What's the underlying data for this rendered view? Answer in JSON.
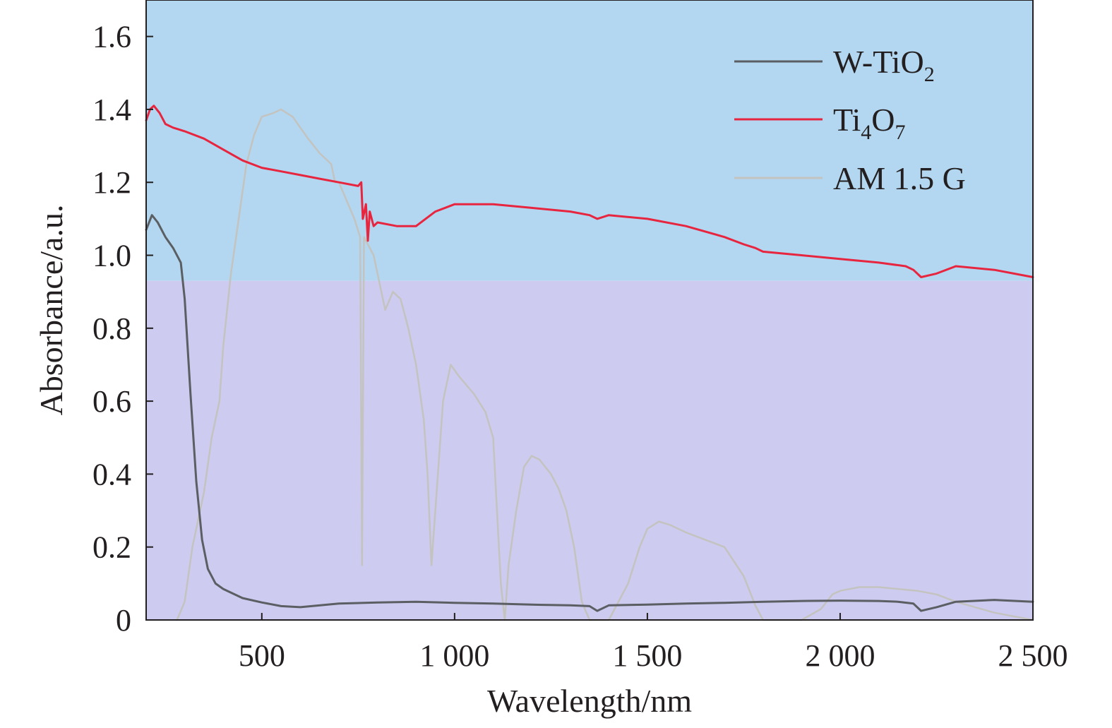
{
  "chart_data": {
    "type": "line",
    "title": "",
    "xlabel": "Wavelength/nm",
    "ylabel": "Absorbance/a.u.",
    "xlim": [
      200,
      2500
    ],
    "ylim": [
      0,
      1.7
    ],
    "x_ticks": [
      500,
      1000,
      1500,
      2000,
      2500
    ],
    "x_tick_labels": [
      "500",
      "1 000",
      "1 500",
      "2 000",
      "2 500"
    ],
    "y_ticks": [
      0,
      0.2,
      0.4,
      0.6,
      0.8,
      1.0,
      1.2,
      1.4,
      1.6
    ],
    "y_tick_labels": [
      "0",
      "0.2",
      "0.4",
      "0.6",
      "0.8",
      "1.0",
      "1.2",
      "1.4",
      "1.6"
    ],
    "grid": false,
    "legend_position": "top-right",
    "background_bands": [
      {
        "from": 0.93,
        "to": 1.7,
        "color": "#b3d7f0"
      },
      {
        "from": 0,
        "to": 0.93,
        "color": "#cecbf0"
      }
    ],
    "series": [
      {
        "name_main": "W-TiO",
        "name_sub": "2",
        "color": "#5b5e62",
        "points": [
          [
            200,
            1.07
          ],
          [
            215,
            1.11
          ],
          [
            230,
            1.09
          ],
          [
            250,
            1.05
          ],
          [
            270,
            1.02
          ],
          [
            290,
            0.98
          ],
          [
            300,
            0.88
          ],
          [
            315,
            0.62
          ],
          [
            330,
            0.38
          ],
          [
            345,
            0.22
          ],
          [
            360,
            0.14
          ],
          [
            380,
            0.1
          ],
          [
            400,
            0.085
          ],
          [
            450,
            0.06
          ],
          [
            500,
            0.048
          ],
          [
            550,
            0.038
          ],
          [
            600,
            0.035
          ],
          [
            700,
            0.045
          ],
          [
            800,
            0.048
          ],
          [
            900,
            0.05
          ],
          [
            1000,
            0.047
          ],
          [
            1100,
            0.045
          ],
          [
            1200,
            0.042
          ],
          [
            1300,
            0.04
          ],
          [
            1350,
            0.038
          ],
          [
            1370,
            0.025
          ],
          [
            1400,
            0.04
          ],
          [
            1500,
            0.042
          ],
          [
            1600,
            0.045
          ],
          [
            1700,
            0.047
          ],
          [
            1800,
            0.05
          ],
          [
            1900,
            0.052
          ],
          [
            2000,
            0.053
          ],
          [
            2100,
            0.052
          ],
          [
            2150,
            0.05
          ],
          [
            2190,
            0.045
          ],
          [
            2210,
            0.025
          ],
          [
            2250,
            0.035
          ],
          [
            2300,
            0.05
          ],
          [
            2400,
            0.055
          ],
          [
            2500,
            0.05
          ]
        ]
      },
      {
        "name_main": "Ti",
        "name_sub": "4",
        "name_main2": "O",
        "name_sub2": "7",
        "color": "#e8253f",
        "points": [
          [
            200,
            1.37
          ],
          [
            210,
            1.4
          ],
          [
            220,
            1.41
          ],
          [
            235,
            1.39
          ],
          [
            250,
            1.36
          ],
          [
            270,
            1.35
          ],
          [
            300,
            1.34
          ],
          [
            350,
            1.32
          ],
          [
            400,
            1.29
          ],
          [
            450,
            1.26
          ],
          [
            500,
            1.24
          ],
          [
            550,
            1.23
          ],
          [
            600,
            1.22
          ],
          [
            650,
            1.21
          ],
          [
            700,
            1.2
          ],
          [
            750,
            1.19
          ],
          [
            758,
            1.2
          ],
          [
            762,
            1.1
          ],
          [
            770,
            1.14
          ],
          [
            775,
            1.04
          ],
          [
            780,
            1.12
          ],
          [
            790,
            1.08
          ],
          [
            800,
            1.09
          ],
          [
            850,
            1.08
          ],
          [
            900,
            1.08
          ],
          [
            950,
            1.12
          ],
          [
            1000,
            1.14
          ],
          [
            1100,
            1.14
          ],
          [
            1200,
            1.13
          ],
          [
            1300,
            1.12
          ],
          [
            1350,
            1.11
          ],
          [
            1370,
            1.1
          ],
          [
            1400,
            1.11
          ],
          [
            1500,
            1.1
          ],
          [
            1600,
            1.08
          ],
          [
            1700,
            1.05
          ],
          [
            1750,
            1.03
          ],
          [
            1780,
            1.02
          ],
          [
            1800,
            1.01
          ],
          [
            1900,
            1.0
          ],
          [
            2000,
            0.99
          ],
          [
            2100,
            0.98
          ],
          [
            2170,
            0.97
          ],
          [
            2190,
            0.96
          ],
          [
            2210,
            0.94
          ],
          [
            2250,
            0.95
          ],
          [
            2300,
            0.97
          ],
          [
            2400,
            0.96
          ],
          [
            2500,
            0.94
          ]
        ]
      },
      {
        "name_main": "AM 1.5 G",
        "color": "#c3c3c0",
        "points": [
          [
            280,
            0.0
          ],
          [
            300,
            0.05
          ],
          [
            320,
            0.2
          ],
          [
            350,
            0.35
          ],
          [
            370,
            0.5
          ],
          [
            390,
            0.6
          ],
          [
            400,
            0.75
          ],
          [
            420,
            0.95
          ],
          [
            440,
            1.1
          ],
          [
            460,
            1.25
          ],
          [
            480,
            1.33
          ],
          [
            500,
            1.38
          ],
          [
            530,
            1.39
          ],
          [
            550,
            1.4
          ],
          [
            580,
            1.38
          ],
          [
            600,
            1.35
          ],
          [
            620,
            1.32
          ],
          [
            650,
            1.28
          ],
          [
            680,
            1.25
          ],
          [
            690,
            1.2
          ],
          [
            700,
            1.2
          ],
          [
            720,
            1.15
          ],
          [
            740,
            1.1
          ],
          [
            755,
            1.05
          ],
          [
            760,
            0.15
          ],
          [
            765,
            1.05
          ],
          [
            790,
            1.0
          ],
          [
            800,
            0.95
          ],
          [
            820,
            0.85
          ],
          [
            840,
            0.9
          ],
          [
            860,
            0.88
          ],
          [
            880,
            0.8
          ],
          [
            900,
            0.7
          ],
          [
            920,
            0.55
          ],
          [
            930,
            0.4
          ],
          [
            940,
            0.15
          ],
          [
            950,
            0.3
          ],
          [
            970,
            0.6
          ],
          [
            990,
            0.7
          ],
          [
            1010,
            0.67
          ],
          [
            1050,
            0.62
          ],
          [
            1080,
            0.57
          ],
          [
            1100,
            0.5
          ],
          [
            1110,
            0.3
          ],
          [
            1120,
            0.1
          ],
          [
            1130,
            0.0
          ],
          [
            1140,
            0.15
          ],
          [
            1160,
            0.3
          ],
          [
            1180,
            0.42
          ],
          [
            1200,
            0.45
          ],
          [
            1220,
            0.44
          ],
          [
            1250,
            0.4
          ],
          [
            1270,
            0.36
          ],
          [
            1290,
            0.3
          ],
          [
            1310,
            0.2
          ],
          [
            1330,
            0.05
          ],
          [
            1350,
            0.0
          ],
          [
            1400,
            0.0
          ],
          [
            1450,
            0.1
          ],
          [
            1480,
            0.2
          ],
          [
            1500,
            0.25
          ],
          [
            1530,
            0.27
          ],
          [
            1560,
            0.26
          ],
          [
            1600,
            0.24
          ],
          [
            1650,
            0.22
          ],
          [
            1700,
            0.2
          ],
          [
            1750,
            0.12
          ],
          [
            1780,
            0.04
          ],
          [
            1800,
            0.0
          ],
          [
            1850,
            0.0
          ],
          [
            1900,
            0.0
          ],
          [
            1950,
            0.03
          ],
          [
            1980,
            0.07
          ],
          [
            2000,
            0.08
          ],
          [
            2050,
            0.09
          ],
          [
            2100,
            0.09
          ],
          [
            2150,
            0.085
          ],
          [
            2200,
            0.08
          ],
          [
            2250,
            0.07
          ],
          [
            2300,
            0.05
          ],
          [
            2400,
            0.02
          ],
          [
            2500,
            0.0
          ]
        ]
      }
    ]
  }
}
